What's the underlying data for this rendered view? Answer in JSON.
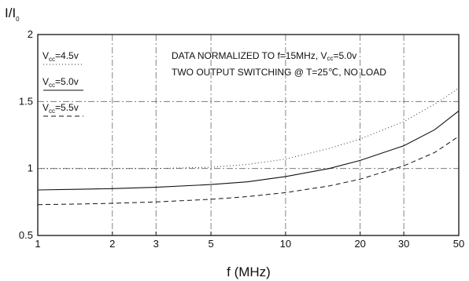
{
  "chart_data": {
    "type": "line",
    "ylabel": "I/I",
    "ylabel_subscript": "0",
    "xlabel": "f (MHz)",
    "x_scale": "log",
    "xlim": [
      1,
      50
    ],
    "ylim": [
      0.5,
      2
    ],
    "x_ticks": [
      "1",
      "2",
      "3",
      "5",
      "10",
      "20",
      "30",
      "50"
    ],
    "y_ticks": [
      "0.5",
      "1",
      "1.5",
      "2"
    ],
    "grid": "dash-dot",
    "legend_position": "top-left",
    "annotations": [
      "DATA NORMALIZED TO f=15MHz, V",
      "cc",
      "=5.0v",
      "TWO OUTPUT SWITCHING @ T=25℃, NO LOAD"
    ],
    "series": [
      {
        "name": "V",
        "name_subscript": "cc",
        "name_suffix": "=4.5v",
        "style": "dotted",
        "x": [
          1,
          1.5,
          2,
          3,
          5,
          7,
          10,
          15,
          20,
          30,
          40,
          50
        ],
        "y": [
          1.0,
          1.0,
          1.0,
          1.0,
          1.01,
          1.03,
          1.07,
          1.15,
          1.22,
          1.35,
          1.48,
          1.6
        ]
      },
      {
        "name": "V",
        "name_subscript": "cc",
        "name_suffix": "=5.0v",
        "style": "solid",
        "x": [
          1,
          1.5,
          2,
          3,
          5,
          7,
          10,
          15,
          20,
          30,
          40,
          50
        ],
        "y": [
          0.84,
          0.845,
          0.85,
          0.86,
          0.88,
          0.9,
          0.94,
          1.0,
          1.06,
          1.17,
          1.29,
          1.43
        ]
      },
      {
        "name": "V",
        "name_subscript": "cc",
        "name_suffix": "=5.5v",
        "style": "dashed",
        "x": [
          1,
          1.5,
          2,
          3,
          5,
          7,
          10,
          15,
          20,
          30,
          40,
          50
        ],
        "y": [
          0.73,
          0.735,
          0.74,
          0.75,
          0.77,
          0.79,
          0.82,
          0.87,
          0.92,
          1.02,
          1.12,
          1.24
        ]
      }
    ]
  }
}
